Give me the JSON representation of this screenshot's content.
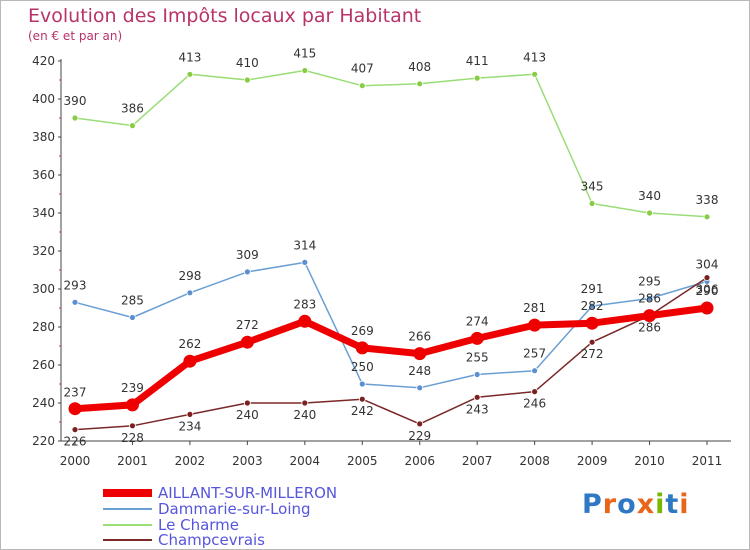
{
  "title": "Evolution des Impôts locaux par Habitant",
  "subtitle": "(en € et par an)",
  "logo": {
    "text": "Proxiti",
    "letters": [
      "P",
      "r",
      "o",
      "x",
      "i",
      "t",
      "i"
    ],
    "colors": [
      "#2f78c4",
      "#e8651a",
      "#2f78c4",
      "#e8651a",
      "#7ab800",
      "#2f78c4",
      "#e8651a"
    ]
  },
  "chart_data": {
    "type": "line",
    "title": "Evolution des Impôts locaux par Habitant",
    "subtitle": "(en € et par an)",
    "x": [
      "2000",
      "2001",
      "2002",
      "2003",
      "2004",
      "2005",
      "2006",
      "2007",
      "2008",
      "2009",
      "2010",
      "2011"
    ],
    "ylim": [
      220,
      420
    ],
    "yticks": [
      220,
      240,
      260,
      280,
      300,
      320,
      340,
      360,
      380,
      400,
      420
    ],
    "grid": false,
    "legend_position": "bottom-left",
    "series": [
      {
        "name": "AILLANT-SUR-MILLERON",
        "color": "#ee0000",
        "values": [
          237,
          239,
          262,
          272,
          283,
          269,
          266,
          274,
          281,
          282,
          286,
          290
        ]
      },
      {
        "name": "Dammarie-sur-Loing",
        "color": "#6a9fd4",
        "values": [
          293,
          285,
          298,
          309,
          314,
          250,
          248,
          255,
          257,
          291,
          295,
          304
        ]
      },
      {
        "name": "Le Charme",
        "color": "#99dd77",
        "values": [
          390,
          386,
          413,
          410,
          415,
          407,
          408,
          411,
          413,
          345,
          340,
          338
        ]
      },
      {
        "name": "Champcevrais",
        "color": "#7a2828",
        "values": [
          226,
          228,
          234,
          240,
          240,
          242,
          229,
          243,
          246,
          272,
          286,
          306
        ]
      }
    ]
  }
}
